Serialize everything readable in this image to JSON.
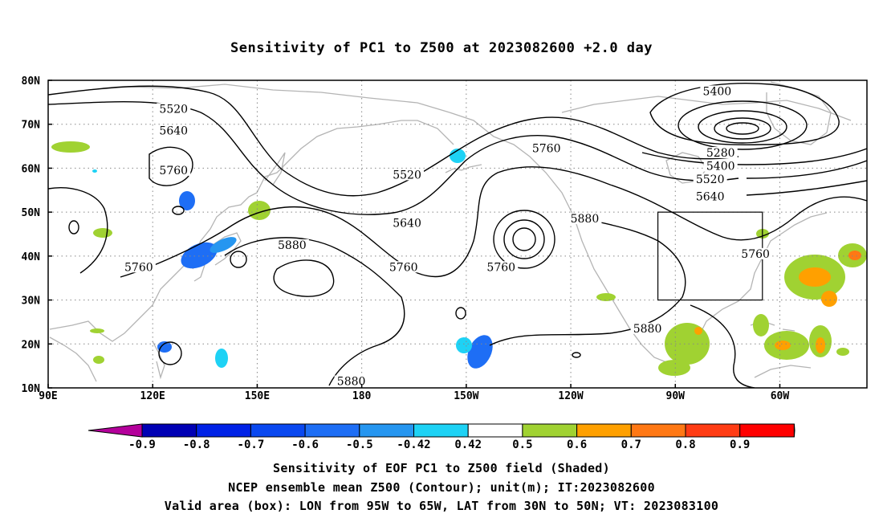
{
  "title": "Sensitivity of PC1 to Z500 at 2023082600 +2.0 day",
  "map": {
    "lon_labels": [
      "90E",
      "120E",
      "150E",
      "180",
      "150W",
      "120W",
      "90W",
      "60W"
    ],
    "lat_labels": [
      "80N",
      "70N",
      "60N",
      "50N",
      "40N",
      "30N",
      "20N",
      "10N"
    ],
    "lon_range": [
      90,
      325
    ],
    "lat_range": [
      10,
      80
    ],
    "valid_box": {
      "lon": [
        265,
        295
      ],
      "lat": [
        30,
        50
      ]
    },
    "contour_labels": [
      {
        "text": "5520",
        "lon": 126,
        "lat": 73
      },
      {
        "text": "5640",
        "lon": 126,
        "lat": 68
      },
      {
        "text": "5760",
        "lon": 126,
        "lat": 59
      },
      {
        "text": "5760",
        "lon": 116,
        "lat": 37
      },
      {
        "text": "5880",
        "lon": 160,
        "lat": 42
      },
      {
        "text": "5520",
        "lon": 193,
        "lat": 58
      },
      {
        "text": "5640",
        "lon": 193,
        "lat": 47
      },
      {
        "text": "5760",
        "lon": 192,
        "lat": 37
      },
      {
        "text": "5760",
        "lon": 220,
        "lat": 37
      },
      {
        "text": "5880",
        "lon": 177,
        "lat": 11
      },
      {
        "text": "5760",
        "lon": 233,
        "lat": 64
      },
      {
        "text": "5880",
        "lon": 244,
        "lat": 48
      },
      {
        "text": "5880",
        "lon": 262,
        "lat": 23
      },
      {
        "text": "5400",
        "lon": 282,
        "lat": 77
      },
      {
        "text": "5280",
        "lon": 283,
        "lat": 63
      },
      {
        "text": "5400",
        "lon": 283,
        "lat": 60
      },
      {
        "text": "5520",
        "lon": 280,
        "lat": 57
      },
      {
        "text": "5640",
        "lon": 280,
        "lat": 53
      },
      {
        "text": "5760",
        "lon": 293,
        "lat": 40
      }
    ]
  },
  "colorbar": {
    "labels": [
      "-0.9",
      "-0.8",
      "-0.7",
      "-0.6",
      "-0.5",
      "-0.42",
      "0.42",
      "0.5",
      "0.6",
      "0.7",
      "0.8",
      "0.9"
    ],
    "colors": [
      "#b4009b",
      "#0000b4",
      "#0022e6",
      "#0a48f0",
      "#1e6ef5",
      "#2696f0",
      "#1ed2f5",
      "#ffffff",
      "#a0d232",
      "#ffa000",
      "#ff7814",
      "#ff3c14",
      "#ff0000",
      "#ffa0c8"
    ]
  },
  "captions": {
    "line1": "Sensitivity of EOF PC1 to Z500 field (Shaded)",
    "line2": "NCEP ensemble mean Z500 (Contour); unit(m); IT:2023082600",
    "line3": "Valid area (box): LON from 95W to 65W, LAT from 30N to 50N; VT: 2023083100"
  }
}
